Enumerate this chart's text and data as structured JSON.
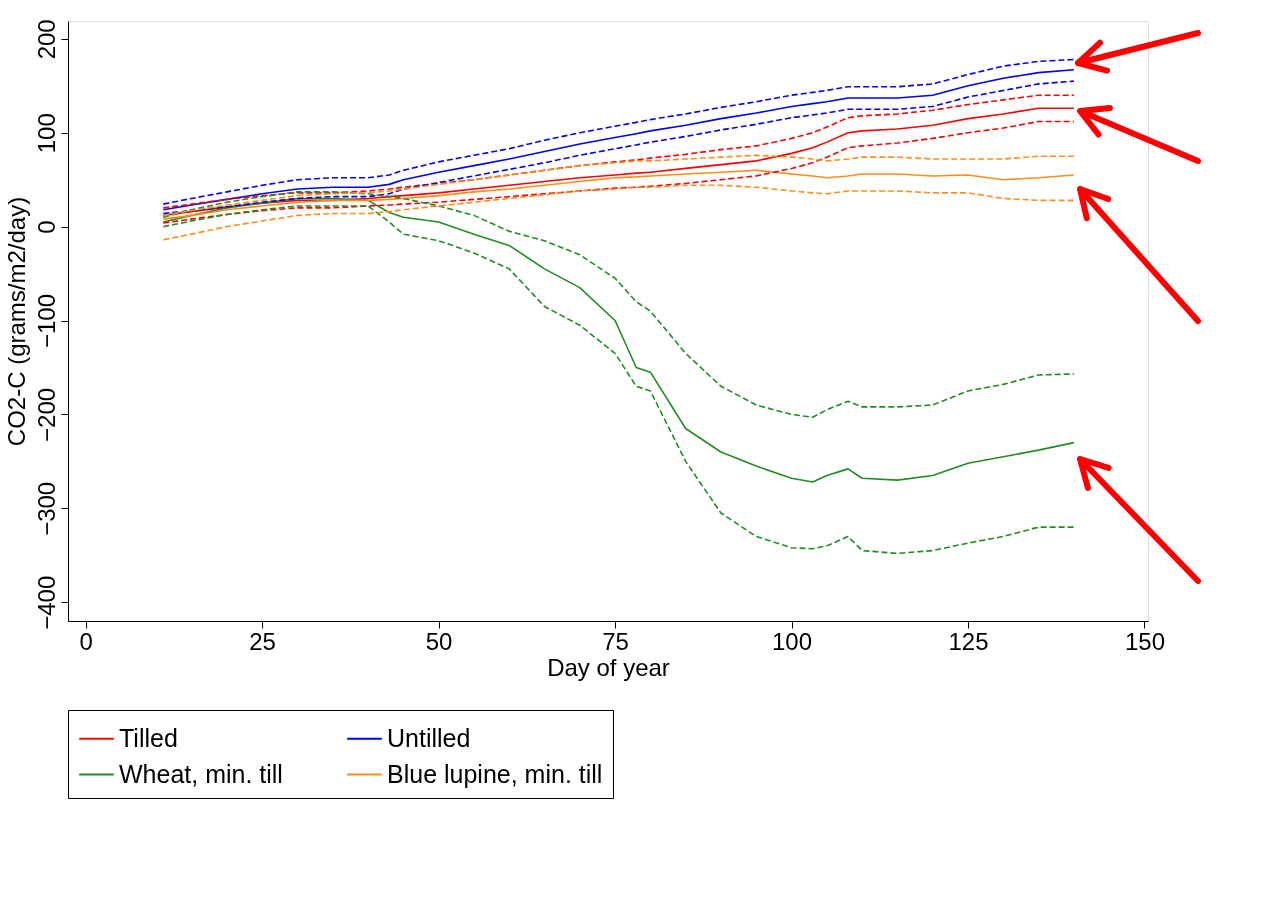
{
  "chart_data": {
    "type": "line",
    "xlabel": "Day of year",
    "ylabel": "CO2-C (grams/m2/day)",
    "x": [
      11,
      15,
      20,
      25,
      30,
      35,
      40,
      43,
      45,
      50,
      55,
      60,
      65,
      70,
      75,
      78,
      80,
      85,
      90,
      95,
      100,
      103,
      105,
      108,
      110,
      115,
      120,
      125,
      130,
      135,
      140
    ],
    "series": [
      {
        "name": "Tilled",
        "color": "#ff0000",
        "values": [
          12,
          16,
          21,
          25,
          28,
          28,
          30,
          32,
          33,
          36,
          40,
          44,
          48,
          52,
          55,
          57,
          58,
          62,
          66,
          70,
          78,
          84,
          90,
          100,
          102,
          104,
          108,
          115,
          120,
          126,
          126
        ]
      },
      {
        "name": "Untilled",
        "color": "#0000ff",
        "values": [
          18,
          23,
          29,
          35,
          40,
          42,
          42,
          45,
          50,
          58,
          65,
          72,
          80,
          88,
          95,
          99,
          102,
          108,
          115,
          121,
          128,
          131,
          133,
          137,
          137,
          137,
          140,
          150,
          158,
          164,
          167
        ]
      },
      {
        "name": "Wheat, min. till",
        "color": "#228b22",
        "values": [
          5,
          12,
          20,
          25,
          30,
          30,
          28,
          15,
          10,
          5,
          -8,
          -20,
          -45,
          -65,
          -100,
          -150,
          -155,
          -215,
          -240,
          -255,
          -268,
          -272,
          -265,
          -258,
          -268,
          -270,
          -265,
          -252,
          -245,
          -238,
          -230
        ]
      },
      {
        "name": "Blue lupine, min. till",
        "color": "#ff8c1a",
        "values": [
          8,
          12,
          18,
          22,
          26,
          28,
          28,
          29,
          30,
          33,
          37,
          40,
          44,
          48,
          52,
          53,
          54,
          56,
          58,
          60,
          56,
          54,
          52,
          54,
          56,
          56,
          54,
          55,
          50,
          52,
          55
        ]
      },
      {
        "color": "#ff0000",
        "line_style": "dashed",
        "values": [
          4,
          8,
          13,
          17,
          20,
          20,
          22,
          23,
          24,
          26,
          29,
          32,
          35,
          38,
          41,
          42,
          43,
          46,
          50,
          54,
          62,
          68,
          74,
          84,
          86,
          89,
          94,
          100,
          105,
          112,
          112
        ]
      },
      {
        "color": "#ff0000",
        "line_style": "dashed",
        "values": [
          20,
          24,
          29,
          33,
          36,
          36,
          38,
          40,
          42,
          46,
          50,
          55,
          60,
          65,
          69,
          71,
          73,
          77,
          82,
          86,
          94,
          100,
          106,
          116,
          118,
          120,
          124,
          130,
          135,
          140,
          140
        ]
      },
      {
        "color": "#0000ff",
        "line_style": "dashed",
        "values": [
          14,
          17,
          21,
          26,
          30,
          32,
          32,
          35,
          40,
          47,
          54,
          61,
          68,
          76,
          83,
          87,
          90,
          96,
          103,
          109,
          116,
          119,
          121,
          125,
          125,
          125,
          128,
          138,
          145,
          152,
          155
        ]
      },
      {
        "color": "#0000ff",
        "line_style": "dashed",
        "values": [
          24,
          30,
          37,
          44,
          50,
          52,
          52,
          55,
          60,
          69,
          76,
          83,
          92,
          100,
          107,
          111,
          114,
          120,
          127,
          133,
          140,
          143,
          145,
          149,
          149,
          149,
          152,
          162,
          171,
          176,
          178
        ]
      },
      {
        "color": "#228b22",
        "line_style": "dashed",
        "values": [
          0,
          6,
          13,
          18,
          22,
          22,
          22,
          5,
          -8,
          -15,
          -28,
          -45,
          -85,
          -105,
          -135,
          -170,
          -175,
          -250,
          -305,
          -330,
          -342,
          -343,
          -340,
          -330,
          -345,
          -348,
          -345,
          -337,
          -330,
          -320,
          -320
        ]
      },
      {
        "color": "#228b22",
        "line_style": "dashed",
        "values": [
          10,
          18,
          26,
          32,
          37,
          37,
          35,
          32,
          30,
          22,
          12,
          -5,
          -15,
          -30,
          -55,
          -80,
          -90,
          -135,
          -170,
          -190,
          -200,
          -203,
          -195,
          -186,
          -192,
          -192,
          -190,
          -175,
          -168,
          -158,
          -157
        ]
      },
      {
        "color": "#ff8c1a",
        "line_style": "dashed",
        "values": [
          -14,
          -8,
          0,
          6,
          12,
          14,
          14,
          16,
          18,
          22,
          26,
          30,
          34,
          38,
          40,
          42,
          42,
          44,
          44,
          42,
          38,
          36,
          35,
          38,
          38,
          38,
          36,
          36,
          30,
          28,
          28
        ]
      },
      {
        "color": "#ff8c1a",
        "line_style": "dashed",
        "values": [
          12,
          17,
          23,
          28,
          33,
          35,
          36,
          38,
          40,
          45,
          50,
          55,
          60,
          65,
          68,
          70,
          70,
          72,
          74,
          76,
          74,
          72,
          70,
          72,
          74,
          74,
          72,
          72,
          72,
          75,
          75
        ]
      }
    ],
    "xlim": [
      -2.5,
      150.5
    ],
    "ylim": [
      -420,
      219
    ],
    "xticks": [
      0,
      25,
      50,
      75,
      100,
      125,
      150
    ],
    "yticks": [
      -400,
      -300,
      -200,
      -100,
      0,
      100,
      200
    ],
    "grid": false,
    "legend": "bottom",
    "marker": "none",
    "line_style": "solid"
  }
}
